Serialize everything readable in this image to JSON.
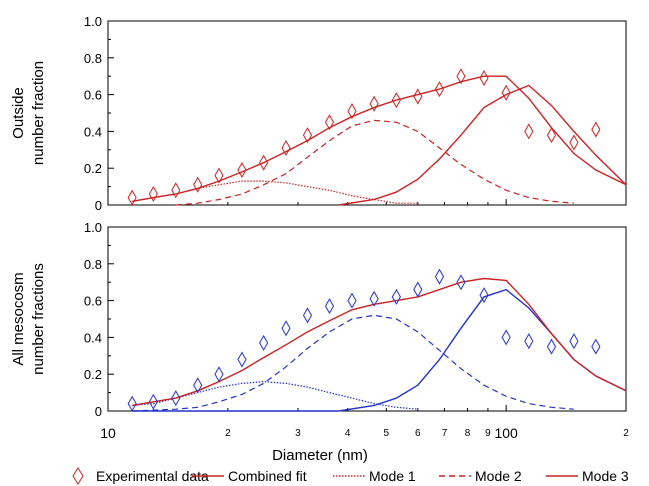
{
  "chart_data": {
    "type": "scatter",
    "x_axis": {
      "label": "Diameter (nm)",
      "scale": "log",
      "range": [
        10,
        200
      ],
      "major_ticks": [
        {
          "value": 10,
          "label": "10"
        },
        {
          "value": 100,
          "label": "100"
        }
      ],
      "minor_ticks": [
        {
          "value": 20,
          "label": "2"
        },
        {
          "value": 30,
          "label": "3"
        },
        {
          "value": 40,
          "label": "4"
        },
        {
          "value": 50,
          "label": "5"
        },
        {
          "value": 60,
          "label": "6"
        },
        {
          "value": 70,
          "label": "7"
        },
        {
          "value": 80,
          "label": "8"
        },
        {
          "value": 90,
          "label": "9"
        },
        {
          "value": 200,
          "label": "2"
        }
      ]
    },
    "panels": [
      {
        "ylabel_lines": [
          "Outside",
          "number fraction"
        ],
        "ylim": [
          0,
          1.0
        ],
        "yticks": [
          "0",
          "0.2",
          "0.4",
          "0.6",
          "0.8",
          "1.0"
        ],
        "data_color": "#cc2222",
        "mode_color": "#cc2222",
        "fit_color": "#cc2222",
        "experimental": {
          "x": [
            11.5,
            13,
            14.8,
            16.8,
            19,
            21.7,
            24.6,
            28,
            31.7,
            36,
            41,
            46.6,
            53,
            60,
            68,
            77,
            88,
            100,
            114,
            130,
            148,
            168
          ],
          "y": [
            0.04,
            0.06,
            0.08,
            0.11,
            0.16,
            0.19,
            0.23,
            0.31,
            0.38,
            0.45,
            0.51,
            0.55,
            0.57,
            0.59,
            0.63,
            0.7,
            0.69,
            0.61,
            0.4,
            0.38,
            0.34,
            0.41
          ]
        },
        "combined_fit": {
          "x": [
            11.5,
            13,
            14.8,
            16.8,
            19,
            21.7,
            24.6,
            28,
            31.7,
            36,
            41,
            46.6,
            53,
            60,
            68,
            77,
            88,
            100,
            114,
            130,
            148,
            168,
            200
          ],
          "y": [
            0.02,
            0.04,
            0.06,
            0.09,
            0.13,
            0.18,
            0.23,
            0.29,
            0.35,
            0.42,
            0.48,
            0.53,
            0.57,
            0.6,
            0.63,
            0.67,
            0.7,
            0.7,
            0.58,
            0.42,
            0.28,
            0.19,
            0.11
          ]
        },
        "mode1": {
          "x": [
            11.5,
            13,
            14.8,
            16.8,
            19,
            21.7,
            24.6,
            28,
            31.7,
            36,
            41,
            46.6,
            53,
            60
          ],
          "y": [
            0.02,
            0.04,
            0.06,
            0.09,
            0.11,
            0.13,
            0.13,
            0.12,
            0.1,
            0.08,
            0.05,
            0.03,
            0.01,
            0.01
          ]
        },
        "mode2": {
          "x": [
            14.8,
            16.8,
            19,
            21.7,
            24.6,
            28,
            31.7,
            36,
            41,
            46.6,
            53,
            60,
            68,
            77,
            88,
            100,
            114,
            130,
            148
          ],
          "y": [
            0.0,
            0.01,
            0.03,
            0.06,
            0.11,
            0.17,
            0.26,
            0.35,
            0.43,
            0.46,
            0.45,
            0.4,
            0.31,
            0.22,
            0.14,
            0.08,
            0.04,
            0.02,
            0.01
          ]
        },
        "mode3": {
          "x": [
            38,
            46.6,
            53,
            60,
            68,
            77,
            88,
            100,
            114,
            130,
            148,
            168,
            200
          ],
          "y": [
            0.0,
            0.03,
            0.07,
            0.14,
            0.25,
            0.38,
            0.53,
            0.6,
            0.65,
            0.54,
            0.4,
            0.27,
            0.11
          ]
        }
      },
      {
        "ylabel_lines": [
          "All mesocosm",
          "number fractions"
        ],
        "ylim": [
          0,
          1.0
        ],
        "yticks": [
          "0",
          "0.2",
          "0.4",
          "0.6",
          "0.8",
          "1.0"
        ],
        "data_color": "#2233cc",
        "mode_color": "#2233cc",
        "fit_color": "#cc2222",
        "experimental": {
          "x": [
            11.5,
            13,
            14.8,
            16.8,
            19,
            21.7,
            24.6,
            28,
            31.7,
            36,
            41,
            46.6,
            53,
            60,
            68,
            77,
            88,
            100,
            114,
            130,
            148,
            168
          ],
          "y": [
            0.04,
            0.05,
            0.07,
            0.14,
            0.2,
            0.28,
            0.37,
            0.45,
            0.52,
            0.57,
            0.6,
            0.61,
            0.62,
            0.66,
            0.73,
            0.7,
            0.63,
            0.4,
            0.38,
            0.35,
            0.38,
            0.35
          ]
        },
        "combined_fit": {
          "x": [
            11.5,
            13,
            14.8,
            16.8,
            19,
            21.7,
            24.6,
            28,
            31.7,
            36,
            41,
            46.6,
            53,
            60,
            68,
            77,
            88,
            100,
            114,
            130,
            148,
            168,
            200
          ],
          "y": [
            0.03,
            0.05,
            0.07,
            0.11,
            0.16,
            0.22,
            0.29,
            0.36,
            0.43,
            0.49,
            0.55,
            0.58,
            0.6,
            0.62,
            0.66,
            0.7,
            0.72,
            0.71,
            0.58,
            0.42,
            0.28,
            0.19,
            0.11
          ]
        },
        "mode1": {
          "x": [
            11.5,
            13,
            14.8,
            16.8,
            19,
            21.7,
            24.6,
            28,
            31.7,
            36,
            41,
            46.6,
            53,
            60
          ],
          "y": [
            0.03,
            0.04,
            0.07,
            0.1,
            0.13,
            0.15,
            0.16,
            0.15,
            0.13,
            0.1,
            0.07,
            0.04,
            0.02,
            0.01
          ]
        },
        "mode2": {
          "x": [
            11.5,
            14.8,
            16.8,
            19,
            21.7,
            24.6,
            28,
            31.7,
            36,
            41,
            46.6,
            53,
            60,
            68,
            77,
            88,
            100,
            114,
            130,
            148
          ],
          "y": [
            0.0,
            0.01,
            0.02,
            0.05,
            0.09,
            0.15,
            0.24,
            0.34,
            0.43,
            0.5,
            0.52,
            0.5,
            0.43,
            0.33,
            0.23,
            0.14,
            0.08,
            0.04,
            0.02,
            0.01
          ]
        },
        "mode3": {
          "x": [
            11.5,
            20,
            30,
            38,
            46.6,
            53,
            60,
            68,
            77,
            88,
            100,
            114,
            130,
            148,
            168,
            200
          ],
          "y": [
            0.0,
            0.0,
            0.0,
            0.0,
            0.03,
            0.07,
            0.14,
            0.28,
            0.45,
            0.62,
            0.66,
            0.56,
            0.42,
            0.28,
            0.19,
            0.11
          ]
        }
      }
    ],
    "legend": {
      "placement": "bottom",
      "entries": [
        {
          "label": "Experimental data",
          "marker": "diamond",
          "color": "#cc2222"
        },
        {
          "label": "Combined fit",
          "line": "solid",
          "color": "#cc2222"
        },
        {
          "label": "Mode 1",
          "line": "dotted",
          "color": "#cc2222"
        },
        {
          "label": "Mode 2",
          "line": "dashed",
          "color": "#cc2222"
        },
        {
          "label": "Mode 3",
          "line": "solid",
          "color": "#cc2222"
        }
      ]
    }
  }
}
